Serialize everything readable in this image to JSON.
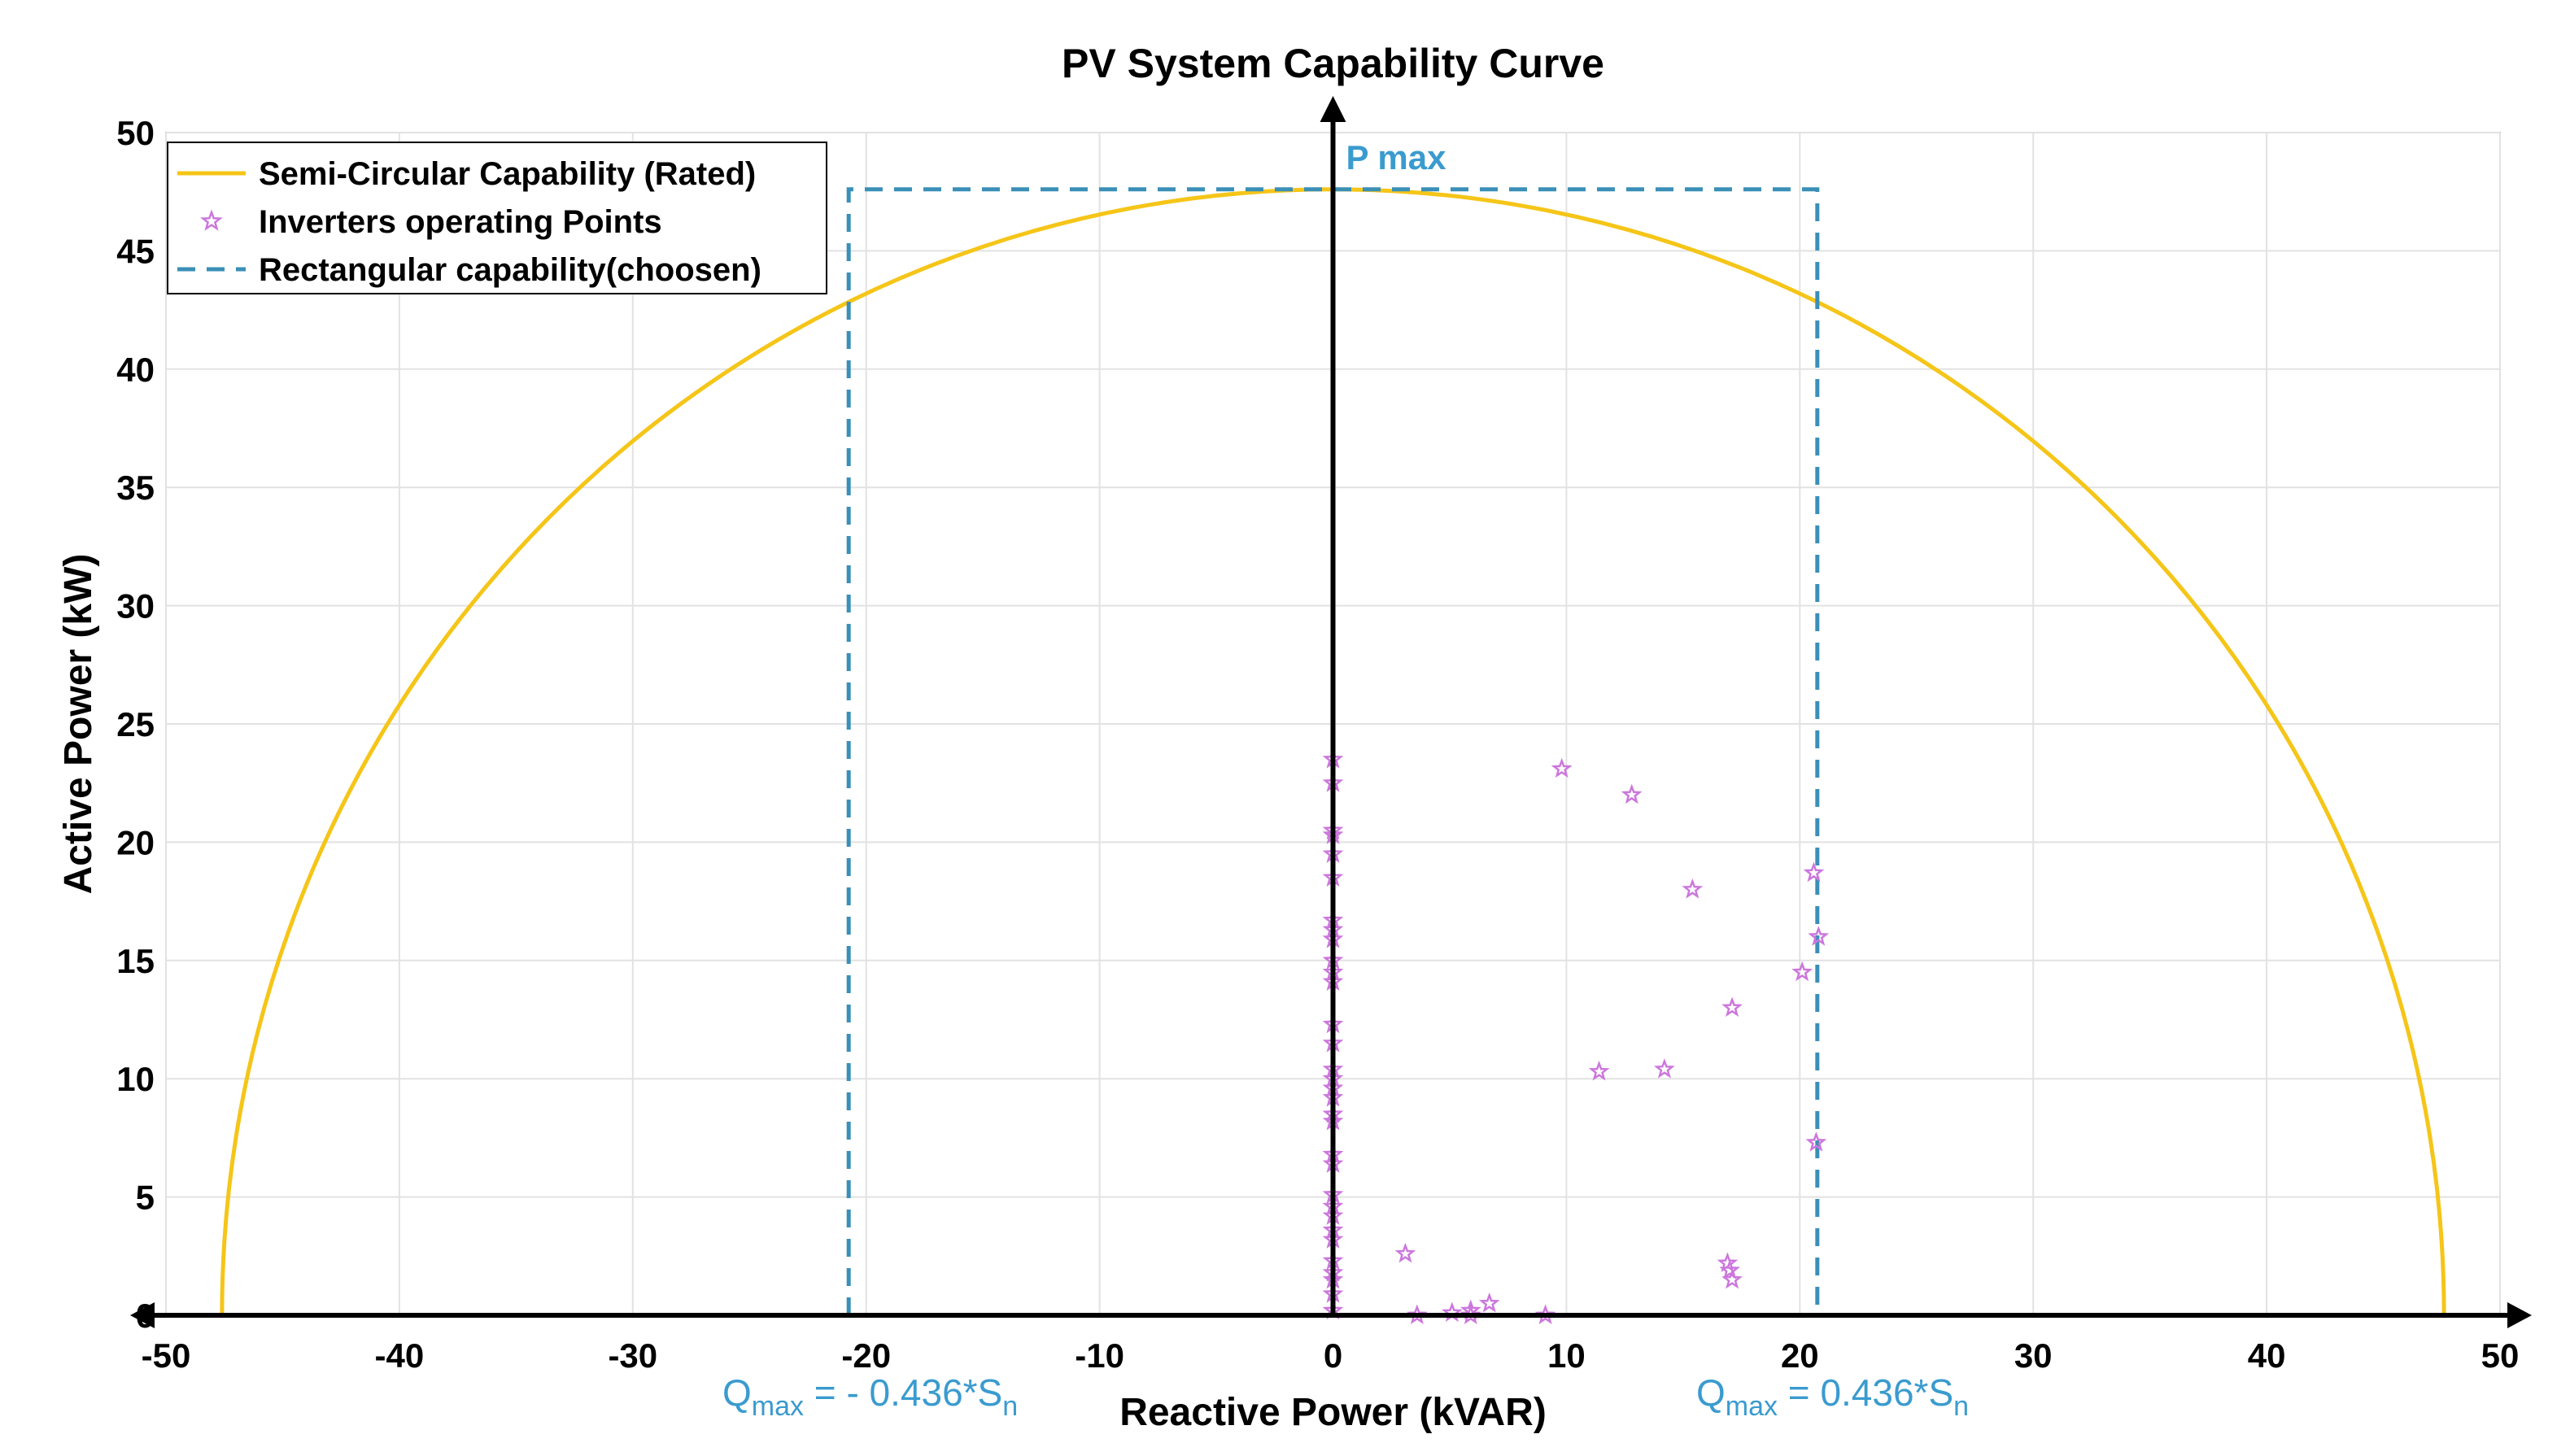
{
  "chart_data": {
    "type": "scatter",
    "title": "PV System Capability Curve",
    "xlabel": "Reactive Power (kVAR)",
    "ylabel": "Active Power (kW)",
    "xlim": [
      -50,
      50
    ],
    "ylim": [
      0,
      50
    ],
    "xticks": [
      -50,
      -40,
      -30,
      -20,
      -10,
      0,
      10,
      20,
      30,
      40,
      50
    ],
    "yticks": [
      0,
      5,
      10,
      15,
      20,
      25,
      30,
      35,
      40,
      45,
      50
    ],
    "grid": true,
    "legend_position": "top-left",
    "colors": {
      "semi": "#F5C518",
      "points": "#CC77DD",
      "rect": "#3A8FB7",
      "annotation": "#3A9BCF",
      "axis": "#000000",
      "grid": "#E2E2E2"
    },
    "series": [
      {
        "name": "Semi-Circular Capability (Rated)",
        "kind": "semicircle",
        "radius": 47.6
      },
      {
        "name": "Inverters operating Points",
        "kind": "scatter",
        "marker": "pentagram",
        "points": [
          [
            0,
            23.5
          ],
          [
            0,
            22.5
          ],
          [
            0,
            20.5
          ],
          [
            0,
            20.3
          ],
          [
            0,
            19.5
          ],
          [
            0,
            18.5
          ],
          [
            0,
            16.7
          ],
          [
            0,
            16.3
          ],
          [
            0,
            15.9
          ],
          [
            0,
            15.0
          ],
          [
            0,
            14.5
          ],
          [
            0,
            14.1
          ],
          [
            0,
            12.3
          ],
          [
            0,
            11.5
          ],
          [
            0,
            10.4
          ],
          [
            0,
            10.0
          ],
          [
            0,
            9.6
          ],
          [
            0,
            9.2
          ],
          [
            0,
            8.5
          ],
          [
            0,
            8.2
          ],
          [
            0,
            6.8
          ],
          [
            0,
            6.4
          ],
          [
            0,
            5.1
          ],
          [
            0,
            4.6
          ],
          [
            0,
            4.2
          ],
          [
            0,
            3.6
          ],
          [
            0,
            3.2
          ],
          [
            0,
            2.3
          ],
          [
            0,
            1.8
          ],
          [
            0,
            1.5
          ],
          [
            0,
            0.9
          ],
          [
            0,
            0.2
          ],
          [
            9.8,
            23.1
          ],
          [
            12.8,
            22.0
          ],
          [
            15.4,
            18.0
          ],
          [
            20.6,
            18.7
          ],
          [
            20.8,
            16.0
          ],
          [
            20.1,
            14.5
          ],
          [
            17.1,
            13.0
          ],
          [
            11.4,
            10.3
          ],
          [
            14.2,
            10.4
          ],
          [
            20.7,
            7.3
          ],
          [
            16.9,
            2.2
          ],
          [
            17.0,
            1.9
          ],
          [
            17.1,
            1.5
          ],
          [
            3.1,
            2.6
          ],
          [
            3.6,
            0.0
          ],
          [
            5.1,
            0.1
          ],
          [
            5.9,
            0.2
          ],
          [
            6.7,
            0.5
          ],
          [
            5.9,
            0.0
          ],
          [
            9.1,
            0.0
          ]
        ]
      },
      {
        "name": "Rectangular capability(choosen)",
        "kind": "rectangle",
        "q_min": -20.75,
        "q_max": 20.75,
        "p_max": 47.6
      }
    ],
    "annotations": {
      "pmax": "P max",
      "qmax_neg_prefix": "Q",
      "qmax_neg_sub": "max",
      "qmax_neg_mid": " = - 0.436*S",
      "qmax_neg_end": "n",
      "qmax_pos_prefix": "Q",
      "qmax_pos_sub": "max",
      "qmax_pos_mid": " = 0.436*S",
      "qmax_pos_end": "n"
    }
  }
}
